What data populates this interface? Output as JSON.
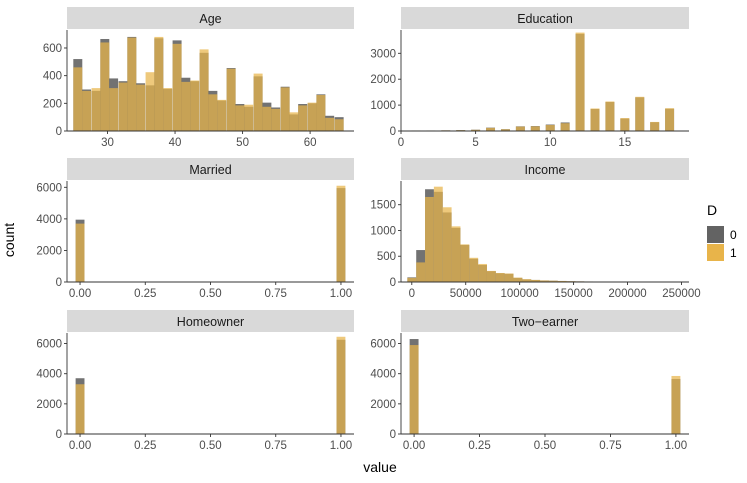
{
  "colors": {
    "group0": "#636363",
    "group1": "#E8B44A",
    "strip": "#D9D9D9",
    "overlap": "#B28A36"
  },
  "chart_data": {
    "type": "bar",
    "xlabel": "value",
    "ylabel": "count",
    "legend": {
      "title": "D",
      "placement": "right",
      "entries": [
        "0",
        "1"
      ]
    },
    "panels": [
      {
        "title": "Age",
        "xlim": [
          24,
          66.5
        ],
        "ylim": [
          0,
          730
        ],
        "xticks": [
          30,
          40,
          50,
          60
        ],
        "xtick_labels": [
          "30",
          "40",
          "50",
          "60"
        ],
        "yticks": [
          0,
          200,
          400,
          600
        ],
        "ytick_labels": [
          "0",
          "200",
          "400",
          "600"
        ],
        "bin_width": 1.33,
        "bins": [
          {
            "x": 25.6,
            "d0": 520,
            "d1": 460
          },
          {
            "x": 26.9,
            "d0": 300,
            "d1": 290
          },
          {
            "x": 28.3,
            "d0": 290,
            "d1": 310
          },
          {
            "x": 29.6,
            "d0": 665,
            "d1": 640
          },
          {
            "x": 30.9,
            "d0": 380,
            "d1": 310
          },
          {
            "x": 32.3,
            "d0": 360,
            "d1": 350
          },
          {
            "x": 33.6,
            "d0": 680,
            "d1": 675
          },
          {
            "x": 34.9,
            "d0": 345,
            "d1": 335
          },
          {
            "x": 36.3,
            "d0": 330,
            "d1": 425
          },
          {
            "x": 37.6,
            "d0": 670,
            "d1": 680
          },
          {
            "x": 38.9,
            "d0": 305,
            "d1": 310
          },
          {
            "x": 40.3,
            "d0": 655,
            "d1": 630
          },
          {
            "x": 41.6,
            "d0": 385,
            "d1": 355
          },
          {
            "x": 42.9,
            "d0": 360,
            "d1": 365
          },
          {
            "x": 44.3,
            "d0": 565,
            "d1": 590
          },
          {
            "x": 45.6,
            "d0": 290,
            "d1": 265
          },
          {
            "x": 46.9,
            "d0": 220,
            "d1": 225
          },
          {
            "x": 48.3,
            "d0": 455,
            "d1": 450
          },
          {
            "x": 49.6,
            "d0": 195,
            "d1": 185
          },
          {
            "x": 50.9,
            "d0": 175,
            "d1": 190
          },
          {
            "x": 52.3,
            "d0": 395,
            "d1": 415
          },
          {
            "x": 53.6,
            "d0": 205,
            "d1": 175
          },
          {
            "x": 54.9,
            "d0": 170,
            "d1": 160
          },
          {
            "x": 56.3,
            "d0": 320,
            "d1": 315
          },
          {
            "x": 57.6,
            "d0": 120,
            "d1": 135
          },
          {
            "x": 58.9,
            "d0": 195,
            "d1": 185
          },
          {
            "x": 60.3,
            "d0": 200,
            "d1": 205
          },
          {
            "x": 61.6,
            "d0": 265,
            "d1": 260
          },
          {
            "x": 62.9,
            "d0": 110,
            "d1": 95
          },
          {
            "x": 64.3,
            "d0": 100,
            "d1": 85
          }
        ]
      },
      {
        "title": "Education",
        "xlim": [
          0,
          19.3
        ],
        "ylim": [
          0,
          3900
        ],
        "xticks": [
          0,
          5,
          10,
          15
        ],
        "xtick_labels": [
          "0",
          "5",
          "10",
          "15"
        ],
        "yticks": [
          0,
          1000,
          2000,
          3000
        ],
        "ytick_labels": [
          "0",
          "1000",
          "2000",
          "3000"
        ],
        "bin_width": 0.6,
        "bins": [
          {
            "x": 1.0,
            "d0": 20,
            "d1": 20
          },
          {
            "x": 2.0,
            "d0": 20,
            "d1": 20
          },
          {
            "x": 3.0,
            "d0": 25,
            "d1": 25
          },
          {
            "x": 4.0,
            "d0": 35,
            "d1": 30
          },
          {
            "x": 5.0,
            "d0": 50,
            "d1": 45
          },
          {
            "x": 6.0,
            "d0": 130,
            "d1": 120
          },
          {
            "x": 7.0,
            "d0": 70,
            "d1": 65
          },
          {
            "x": 8.0,
            "d0": 180,
            "d1": 170
          },
          {
            "x": 9.0,
            "d0": 190,
            "d1": 180
          },
          {
            "x": 10.0,
            "d0": 250,
            "d1": 230
          },
          {
            "x": 11.0,
            "d0": 330,
            "d1": 300
          },
          {
            "x": 12.0,
            "d0": 3750,
            "d1": 3800
          },
          {
            "x": 13.0,
            "d0": 850,
            "d1": 870
          },
          {
            "x": 14.0,
            "d0": 1120,
            "d1": 1140
          },
          {
            "x": 15.0,
            "d0": 480,
            "d1": 500
          },
          {
            "x": 16.0,
            "d0": 1300,
            "d1": 1320
          },
          {
            "x": 17.0,
            "d0": 340,
            "d1": 350
          },
          {
            "x": 18.0,
            "d0": 860,
            "d1": 880
          }
        ]
      },
      {
        "title": "Married",
        "xlim": [
          -0.05,
          1.05
        ],
        "ylim": [
          0,
          6400
        ],
        "xticks": [
          0,
          0.25,
          0.5,
          0.75,
          1.0
        ],
        "xtick_labels": [
          "0.00",
          "0.25",
          "0.50",
          "0.75",
          "1.00"
        ],
        "yticks": [
          0,
          2000,
          4000,
          6000
        ],
        "ytick_labels": [
          "0",
          "2000",
          "4000",
          "6000"
        ],
        "bin_width": 0.034,
        "bins": [
          {
            "x": 0.0,
            "d0": 3950,
            "d1": 3700
          },
          {
            "x": 1.0,
            "d0": 5950,
            "d1": 6100
          }
        ]
      },
      {
        "title": "Income",
        "xlim": [
          -10000,
          257000
        ],
        "ylim": [
          0,
          1960
        ],
        "xticks": [
          0,
          50000,
          100000,
          150000,
          200000,
          250000
        ],
        "xtick_labels": [
          "0",
          "50000",
          "100000",
          "150000",
          "200000",
          "250000"
        ],
        "yticks": [
          0,
          500,
          1000,
          1500
        ],
        "ytick_labels": [
          "0",
          "500",
          "1000",
          "1500"
        ],
        "bin_width": 8200,
        "bins": [
          {
            "x": 0,
            "d0": 90,
            "d1": 80
          },
          {
            "x": 8200,
            "d0": 620,
            "d1": 380
          },
          {
            "x": 16400,
            "d0": 1800,
            "d1": 1650
          },
          {
            "x": 24600,
            "d0": 1750,
            "d1": 1850
          },
          {
            "x": 32800,
            "d0": 1350,
            "d1": 1450
          },
          {
            "x": 41000,
            "d0": 1050,
            "d1": 1080
          },
          {
            "x": 49200,
            "d0": 720,
            "d1": 730
          },
          {
            "x": 57400,
            "d0": 450,
            "d1": 470
          },
          {
            "x": 65600,
            "d0": 330,
            "d1": 350
          },
          {
            "x": 73800,
            "d0": 210,
            "d1": 215
          },
          {
            "x": 82000,
            "d0": 170,
            "d1": 175
          },
          {
            "x": 90200,
            "d0": 160,
            "d1": 165
          },
          {
            "x": 98400,
            "d0": 80,
            "d1": 85
          },
          {
            "x": 106600,
            "d0": 50,
            "d1": 55
          },
          {
            "x": 114800,
            "d0": 40,
            "d1": 40
          },
          {
            "x": 123000,
            "d0": 30,
            "d1": 30
          },
          {
            "x": 131200,
            "d0": 25,
            "d1": 25
          },
          {
            "x": 139400,
            "d0": 20,
            "d1": 20
          },
          {
            "x": 147600,
            "d0": 15,
            "d1": 15
          },
          {
            "x": 155800,
            "d0": 12,
            "d1": 12
          },
          {
            "x": 164000,
            "d0": 10,
            "d1": 10
          },
          {
            "x": 172200,
            "d0": 8,
            "d1": 8
          },
          {
            "x": 180400,
            "d0": 8,
            "d1": 8
          },
          {
            "x": 188600,
            "d0": 6,
            "d1": 6
          },
          {
            "x": 196800,
            "d0": 6,
            "d1": 6
          },
          {
            "x": 205000,
            "d0": 5,
            "d1": 5
          },
          {
            "x": 213200,
            "d0": 4,
            "d1": 4
          },
          {
            "x": 221400,
            "d0": 4,
            "d1": 4
          },
          {
            "x": 229600,
            "d0": 3,
            "d1": 3
          },
          {
            "x": 237800,
            "d0": 3,
            "d1": 3
          },
          {
            "x": 246000,
            "d0": 3,
            "d1": 3
          }
        ]
      },
      {
        "title": "Homeowner",
        "xlim": [
          -0.05,
          1.05
        ],
        "ylim": [
          0,
          6700
        ],
        "xticks": [
          0,
          0.25,
          0.5,
          0.75,
          1.0
        ],
        "xtick_labels": [
          "0.00",
          "0.25",
          "0.50",
          "0.75",
          "1.00"
        ],
        "yticks": [
          0,
          2000,
          4000,
          6000
        ],
        "ytick_labels": [
          "0",
          "2000",
          "4000",
          "6000"
        ],
        "bin_width": 0.034,
        "bins": [
          {
            "x": 0.0,
            "d0": 3700,
            "d1": 3300
          },
          {
            "x": 1.0,
            "d0": 6250,
            "d1": 6450
          }
        ]
      },
      {
        "title": "Two−earner",
        "xlim": [
          -0.05,
          1.05
        ],
        "ylim": [
          0,
          6700
        ],
        "xticks": [
          0,
          0.25,
          0.5,
          0.75,
          1.0
        ],
        "xtick_labels": [
          "0.00",
          "0.25",
          "0.50",
          "0.75",
          "1.00"
        ],
        "yticks": [
          0,
          2000,
          4000,
          6000
        ],
        "ytick_labels": [
          "0",
          "2000",
          "4000",
          "6000"
        ],
        "bin_width": 0.034,
        "bins": [
          {
            "x": 0.0,
            "d0": 6300,
            "d1": 5900
          },
          {
            "x": 1.0,
            "d0": 3650,
            "d1": 3850
          }
        ]
      }
    ]
  }
}
